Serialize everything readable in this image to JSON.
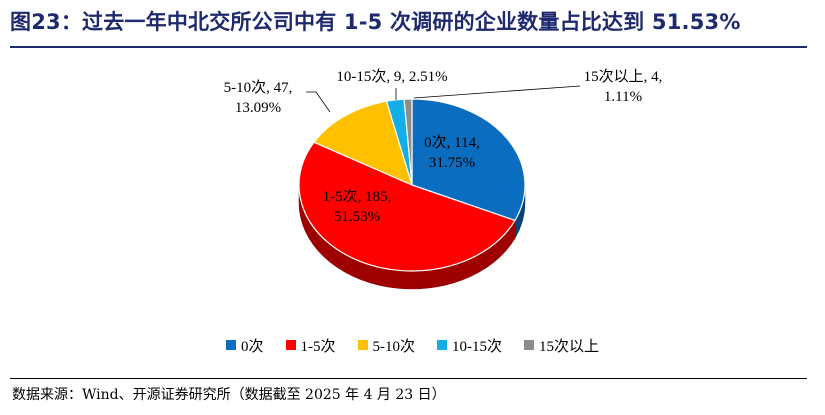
{
  "title": "图23：过去一年中北交所公司中有 1-5 次调研的企业数量占比达到 51.53%",
  "source": "数据来源：Wind、开源证券研究所（数据截至 2025 年 4 月 23 日）",
  "chart_data": {
    "type": "pie",
    "title": "图23：过去一年中北交所公司中有 1-5 次调研的企业数量占比达到 51.53%",
    "legend_position": "bottom",
    "slices": [
      {
        "name": "0次",
        "value": 114,
        "percent": "31.75%",
        "color": "#0b6dc0",
        "label_lines": [
          "0次, 114,",
          "31.75%"
        ]
      },
      {
        "name": "1-5次",
        "value": 185,
        "percent": "51.53%",
        "color": "#ff0000",
        "label_lines": [
          "1-5次, 185,",
          "51.53%"
        ]
      },
      {
        "name": "5-10次",
        "value": 47,
        "percent": "13.09%",
        "color": "#ffc000",
        "label_lines": [
          "5-10次, 47,",
          "13.09%"
        ]
      },
      {
        "name": "10-15次",
        "value": 9,
        "percent": "2.51%",
        "color": "#12aee8",
        "label_lines": [
          "10-15次, 9, 2.51%"
        ]
      },
      {
        "name": "15次以上",
        "value": 4,
        "percent": "1.11%",
        "color": "#8c8c8c",
        "label_lines": [
          "15次以上, 4,",
          "1.11%"
        ]
      }
    ]
  }
}
